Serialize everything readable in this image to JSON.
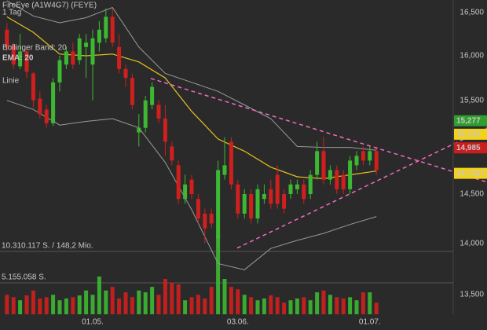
{
  "chart_data": {
    "type": "candlestick",
    "title": "FireEye (A1W4G7) (FEYE)",
    "subtitle": "1 Tag",
    "log_scale": true,
    "up_color": "#3cb832",
    "down_color": "#d0201e",
    "categories": [
      null,
      null,
      null,
      null,
      null,
      null,
      null,
      null,
      null,
      null,
      null,
      null,
      null,
      "01.05.",
      null,
      null,
      null,
      null,
      null,
      null,
      null,
      null,
      null,
      null,
      null,
      null,
      null,
      null,
      null,
      null,
      null,
      null,
      null,
      null,
      null,
      "03.06.",
      null,
      null,
      null,
      null,
      null,
      null,
      null,
      null,
      null,
      null,
      null,
      null,
      null,
      null,
      null,
      null,
      null,
      null,
      null,
      "01.07.",
      null
    ],
    "open": [
      16300,
      16120,
      15880,
      16050,
      15800,
      15520,
      15400,
      15250,
      15700,
      15900,
      16050,
      15950,
      16100,
      15900,
      16150,
      16200,
      16450,
      16100,
      15850,
      15750,
      15150,
      15200,
      15450,
      15450,
      15300,
      15000,
      14800,
      14450,
      14650,
      14450,
      14300,
      14300,
      14050,
      14700,
      15050,
      14600,
      14300,
      14500,
      14250,
      14450,
      14550,
      14700,
      14500,
      14500,
      14550,
      14600,
      14500,
      14700,
      14950,
      14650,
      14750,
      14700,
      14550,
      14800,
      14950,
      14850,
      14950
    ],
    "high": [
      16380,
      16150,
      16250,
      16100,
      15820,
      15600,
      15450,
      15750,
      16000,
      16100,
      16150,
      16250,
      16250,
      16300,
      16400,
      16550,
      16550,
      16250,
      15900,
      15800,
      15350,
      15550,
      15700,
      15500,
      15450,
      15050,
      14850,
      14700,
      14700,
      14500,
      14350,
      14350,
      14850,
      15100,
      15100,
      14650,
      14550,
      14550,
      14600,
      14600,
      14650,
      14800,
      14550,
      14650,
      14650,
      14650,
      14750,
      15050,
      15100,
      14800,
      14800,
      14750,
      14900,
      14950,
      15000,
      15000,
      15000
    ],
    "low": [
      16050,
      15850,
      15850,
      15750,
      15420,
      15300,
      15200,
      15220,
      15600,
      15850,
      15850,
      15900,
      15750,
      15500,
      16050,
      16150,
      16100,
      15800,
      15650,
      15400,
      15000,
      15150,
      15400,
      15250,
      14900,
      14800,
      14400,
      14400,
      14450,
      14200,
      14000,
      14150,
      13950,
      14650,
      14550,
      14250,
      14250,
      14200,
      14200,
      14400,
      14350,
      14350,
      14300,
      14450,
      14500,
      14400,
      14450,
      14650,
      14600,
      14600,
      14500,
      14500,
      14500,
      14750,
      14800,
      14800,
      14700
    ],
    "close": [
      16100,
      15900,
      16050,
      15820,
      15500,
      15350,
      15250,
      15700,
      15950,
      16050,
      15900,
      16200,
      16150,
      16200,
      16300,
      16450,
      16150,
      15850,
      15750,
      15450,
      15200,
      15500,
      15650,
      15300,
      15050,
      14850,
      14450,
      14600,
      14500,
      14250,
      14150,
      14200,
      14750,
      14800,
      14600,
      14300,
      14500,
      14250,
      14550,
      14500,
      14400,
      14400,
      14350,
      14600,
      14600,
      14450,
      14700,
      14950,
      14650,
      14750,
      14550,
      14550,
      14850,
      14900,
      14850,
      14950,
      14750
    ],
    "ylim": [
      13163,
      16648
    ],
    "yticks": [
      {
        "value": 16500,
        "label": "16,500"
      },
      {
        "value": 16000,
        "label": "16,000"
      },
      {
        "value": 15500,
        "label": "15,500"
      },
      {
        "value": 14500,
        "label": "14,500"
      },
      {
        "value": 14000,
        "label": "14,000"
      },
      {
        "value": 13500,
        "label": "13,500"
      }
    ],
    "indicators": [
      {
        "name": "Bollinger Band: 20",
        "color": "#9a9a9a",
        "x": [
          0,
          4,
          8,
          12,
          16,
          20,
          24,
          28,
          32,
          36,
          40,
          44,
          48,
          52,
          56
        ],
        "upper": [
          16640,
          16460,
          16380,
          16440,
          16560,
          16100,
          15800,
          15700,
          15600,
          15450,
          15300,
          15000,
          14990,
          14990,
          14960
        ],
        "lower": [
          15500,
          15400,
          15230,
          15270,
          15300,
          15200,
          14830,
          14340,
          13800,
          13740,
          13950,
          14030,
          14100,
          14190,
          14270
        ]
      },
      {
        "name": "EMA: 20",
        "color": "#e8c21c",
        "x": [
          0,
          4,
          8,
          12,
          16,
          20,
          24,
          28,
          32,
          36,
          40,
          44,
          48,
          52,
          56
        ],
        "values": [
          16450,
          16270,
          16020,
          16000,
          16020,
          15930,
          15750,
          15380,
          15080,
          14950,
          14780,
          14680,
          14660,
          14700,
          14740
        ]
      }
    ],
    "trendlines": {
      "name": "Linie",
      "color": "#f06cc0",
      "lines": [
        {
          "x": [
            21.8,
            72.8
          ],
          "values": [
            15744,
            14624
          ]
        },
        {
          "x": [
            34.9,
            72.8
          ],
          "values": [
            13954,
            15200
          ]
        }
      ]
    },
    "price_labels": [
      {
        "value": 15277,
        "label": "15,277",
        "color": "#2f9e2f"
      },
      {
        "value": 15131,
        "label": "15,131",
        "color": "#f2d21a"
      },
      {
        "value": 14985,
        "label": "14,985",
        "color": "#c81e1e"
      },
      {
        "value": 14715.7,
        "label": "14,7157",
        "color": "#f2d21a"
      }
    ],
    "volume": {
      "values": [
        3200000,
        2800000,
        2300000,
        3100000,
        3900000,
        2600000,
        2800000,
        3200000,
        2300000,
        2600000,
        2800000,
        3100000,
        3900000,
        3200000,
        6200000,
        3900000,
        4500000,
        2600000,
        3600000,
        2800000,
        3900000,
        3600000,
        4500000,
        3200000,
        5800000,
        5200000,
        4900000,
        2300000,
        2800000,
        3200000,
        2600000,
        4500000,
        13000000,
        5800000,
        4500000,
        4100000,
        3200000,
        2800000,
        2300000,
        2600000,
        3100000,
        2800000,
        1900000,
        2300000,
        2600000,
        2800000,
        2300000,
        3600000,
        3900000,
        3200000,
        2800000,
        2600000,
        2800000,
        2300000,
        3600000,
        3600000,
        1900000
      ],
      "ylim": [
        0,
        10310117
      ],
      "yticks": [
        {
          "value": 5155058,
          "label": "5.155.058 S."
        },
        {
          "value": 10310117,
          "label": "10.310.117 S. / 148,2 Mio."
        }
      ]
    }
  }
}
